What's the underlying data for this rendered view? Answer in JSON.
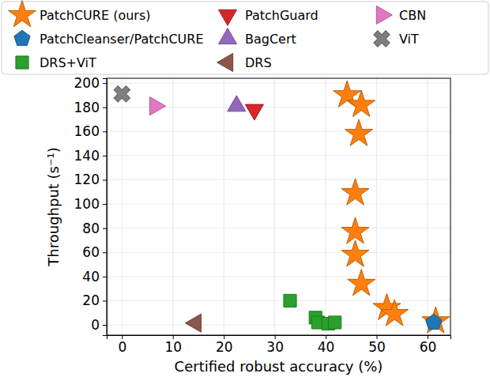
{
  "chart_data": {
    "type": "scatter",
    "x_label": "Certified robust accuracy (%)",
    "y_label": "Throughput (s⁻¹)",
    "xlim": [
      -3,
      64.5
    ],
    "ylim": [
      -8.5,
      204
    ],
    "xticks": [
      0,
      10,
      20,
      30,
      40,
      50,
      60
    ],
    "yticks": [
      0,
      20,
      40,
      60,
      80,
      100,
      120,
      140,
      160,
      180,
      200
    ],
    "grid": true,
    "legend": "top",
    "series": [
      {
        "name": "PatchCURE (ours)",
        "color": "#ff7f0e",
        "marker": "star",
        "x": [
          44.2,
          47.0,
          46.5,
          45.8,
          45.8,
          45.8,
          47.0,
          52.0,
          53.5,
          61.6
        ],
        "values": [
          190,
          182,
          158,
          109,
          77,
          58,
          34,
          14,
          9,
          3
        ]
      },
      {
        "name": "PatchCleanser/PatchCURE",
        "color": "#1f77b4",
        "marker": "pentagon",
        "x": [
          61.2
        ],
        "values": [
          2
        ]
      },
      {
        "name": "DRS+ViT",
        "color": "#2ca02c",
        "marker": "square",
        "x": [
          33.0,
          38.0,
          38.5,
          40.5,
          41.8
        ],
        "values": [
          20,
          6,
          2,
          1,
          2
        ]
      },
      {
        "name": "PatchGuard",
        "color": "#d62728",
        "marker": "triangle-down",
        "x": [
          26.0
        ],
        "values": [
          178
        ]
      },
      {
        "name": "BagCert",
        "color": "#9467bd",
        "marker": "triangle-up",
        "x": [
          22.5
        ],
        "values": [
          181
        ]
      },
      {
        "name": "DRS",
        "color": "#8c564b",
        "marker": "triangle-left",
        "x": [
          14.5
        ],
        "values": [
          1.5
        ]
      },
      {
        "name": "CBN",
        "color": "#e377c2",
        "marker": "triangle-right",
        "x": [
          6.5
        ],
        "values": [
          181
        ]
      },
      {
        "name": "ViT",
        "color": "#7f7f7f",
        "marker": "x",
        "x": [
          0
        ],
        "values": [
          191
        ]
      }
    ]
  }
}
